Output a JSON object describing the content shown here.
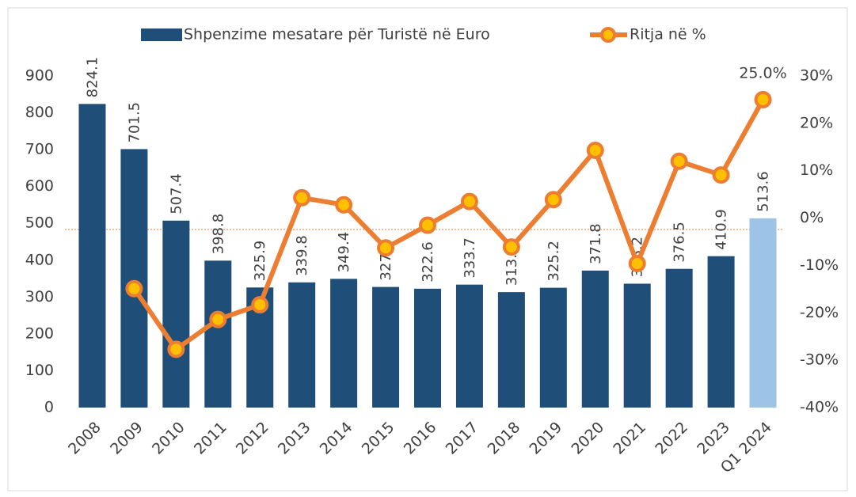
{
  "chart_data": {
    "type": "bar-line",
    "categories": [
      "2008",
      "2009",
      "2010",
      "2011",
      "2012",
      "2013",
      "2014",
      "2015",
      "2016",
      "2017",
      "2018",
      "2019",
      "2020",
      "2021",
      "2022",
      "2023",
      "Q1 2024"
    ],
    "series": [
      {
        "name": "Shpenzime mesatare për Turistë në Euro",
        "type": "bar",
        "color": "#1f4e79",
        "colors": [
          "#1f4e79",
          "#1f4e79",
          "#1f4e79",
          "#1f4e79",
          "#1f4e79",
          "#1f4e79",
          "#1f4e79",
          "#1f4e79",
          "#1f4e79",
          "#1f4e79",
          "#1f4e79",
          "#1f4e79",
          "#1f4e79",
          "#1f4e79",
          "#1f4e79",
          "#1f4e79",
          "#9dc3e6"
        ],
        "values": [
          824.1,
          701.5,
          507.4,
          398.8,
          325.9,
          339.8,
          349.4,
          327.4,
          322.6,
          333.7,
          313.3,
          325.2,
          371.8,
          336.2,
          376.5,
          410.9,
          513.6
        ]
      },
      {
        "name": "Ritja në %",
        "type": "line",
        "axis": "y2",
        "color": "#ed7d31",
        "marker_color": "#ffc000",
        "values": [
          null,
          -14.9,
          -27.7,
          -21.4,
          -18.3,
          4.3,
          2.8,
          -6.3,
          -1.5,
          3.5,
          -6.1,
          3.9,
          14.3,
          -9.6,
          12.0,
          9.1,
          25.0
        ],
        "value_labels": [
          null,
          null,
          null,
          null,
          null,
          null,
          null,
          null,
          null,
          null,
          null,
          null,
          null,
          null,
          null,
          null,
          "25.0%"
        ]
      }
    ],
    "ylim": [
      0,
      900
    ],
    "yticks": [
      0,
      100,
      200,
      300,
      400,
      500,
      600,
      700,
      800,
      900
    ],
    "y2lim": [
      -40,
      30
    ],
    "y2ticks": [
      {
        "value": -40,
        "label": "-40%"
      },
      {
        "value": -30,
        "label": "-30%"
      },
      {
        "value": -20,
        "label": "-20%"
      },
      {
        "value": -10,
        "label": "-10%"
      },
      {
        "value": 0,
        "label": "0%"
      },
      {
        "value": 10,
        "label": "10%"
      },
      {
        "value": 20,
        "label": "20%"
      },
      {
        "value": 30,
        "label": "30%"
      }
    ],
    "legend": "top"
  }
}
